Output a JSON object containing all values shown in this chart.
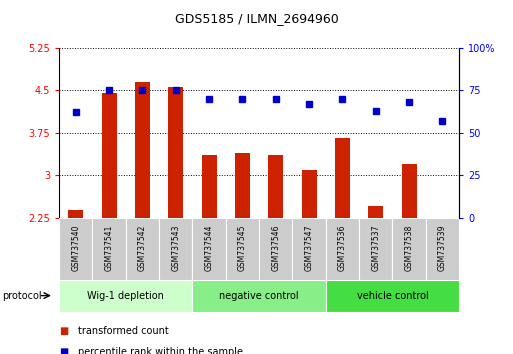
{
  "title": "GDS5185 / ILMN_2694960",
  "categories": [
    "GSM737540",
    "GSM737541",
    "GSM737542",
    "GSM737543",
    "GSM737544",
    "GSM737545",
    "GSM737546",
    "GSM737547",
    "GSM737536",
    "GSM737537",
    "GSM737538",
    "GSM737539"
  ],
  "red_values": [
    2.38,
    4.45,
    4.65,
    4.55,
    3.35,
    3.4,
    3.35,
    3.1,
    3.65,
    2.45,
    3.2,
    2.25
  ],
  "blue_values": [
    62,
    75,
    75,
    75,
    70,
    70,
    70,
    67,
    70,
    63,
    68,
    57
  ],
  "ylim_left": [
    2.25,
    5.25
  ],
  "ylim_right": [
    0,
    100
  ],
  "yticks_left": [
    2.25,
    3.0,
    3.75,
    4.5,
    5.25
  ],
  "ytick_labels_left": [
    "2.25",
    "3",
    "3.75",
    "4.5",
    "5.25"
  ],
  "yticks_right": [
    0,
    25,
    50,
    75,
    100
  ],
  "ytick_labels_right": [
    "0",
    "25",
    "50",
    "75",
    "100%"
  ],
  "groups": [
    {
      "label": "Wig-1 depletion",
      "start": 0,
      "end": 3,
      "color": "#ccffcc"
    },
    {
      "label": "negative control",
      "start": 4,
      "end": 7,
      "color": "#88ee88"
    },
    {
      "label": "vehicle control",
      "start": 8,
      "end": 11,
      "color": "#44dd44"
    }
  ],
  "bar_color": "#cc2200",
  "dot_color": "#0000cc",
  "plot_bg_color": "#ffffff",
  "sample_box_color": "#cccccc",
  "legend_red_label": "transformed count",
  "legend_blue_label": "percentile rank within the sample",
  "protocol_label": "protocol"
}
